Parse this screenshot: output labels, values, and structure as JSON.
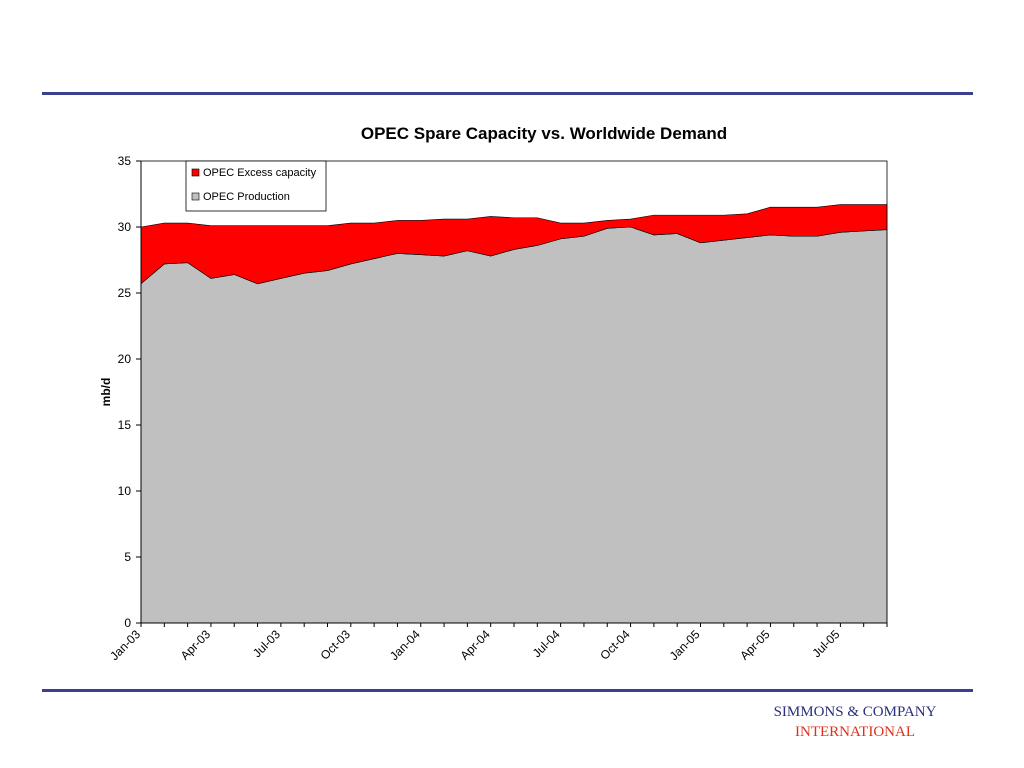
{
  "footer": {
    "company_line1": "SIMMONS & COMPANY",
    "company_line2": "INTERNATIONAL"
  },
  "colors": {
    "rule": "#3a3f8f",
    "excess": "#ff0000",
    "production": "#c0c0c0",
    "company_line1": "#2a2f7f",
    "company_line2": "#e0301e"
  },
  "chart_data": {
    "type": "area",
    "stacked": true,
    "title": "OPEC Spare Capacity vs. Worldwide Demand",
    "xlabel": "",
    "ylabel": "mb/d",
    "ylim": [
      0,
      35
    ],
    "yticks": [
      0,
      5,
      10,
      15,
      20,
      25,
      30,
      35
    ],
    "grid": false,
    "legend_position": "top-left",
    "x": [
      "Jan-03",
      "Feb-03",
      "Mar-03",
      "Apr-03",
      "May-03",
      "Jun-03",
      "Jul-03",
      "Aug-03",
      "Sep-03",
      "Oct-03",
      "Nov-03",
      "Dec-03",
      "Jan-04",
      "Feb-04",
      "Mar-04",
      "Apr-04",
      "May-04",
      "Jun-04",
      "Jul-04",
      "Aug-04",
      "Sep-04",
      "Oct-04",
      "Nov-04",
      "Dec-04",
      "Jan-05",
      "Feb-05",
      "Mar-05",
      "Apr-05",
      "May-05",
      "Jun-05",
      "Jul-05",
      "Aug-05",
      "Sep-05"
    ],
    "xtick_labels": [
      "Jan-03",
      "Apr-03",
      "Jul-03",
      "Oct-03",
      "Jan-04",
      "Apr-04",
      "Jul-04",
      "Oct-04",
      "Jan-05",
      "Apr-05",
      "Jul-05"
    ],
    "series": [
      {
        "name": "OPEC Production",
        "color": "#c0c0c0",
        "values": [
          25.7,
          27.2,
          27.3,
          26.1,
          26.4,
          25.7,
          26.1,
          26.5,
          26.7,
          27.2,
          27.6,
          28.0,
          27.9,
          27.8,
          28.2,
          27.8,
          28.3,
          28.6,
          29.1,
          29.3,
          29.9,
          30.0,
          29.4,
          29.5,
          28.8,
          29.0,
          29.2,
          29.4,
          29.3,
          29.3,
          29.6,
          29.7,
          29.8
        ]
      },
      {
        "name": "OPEC Excess capacity",
        "color": "#ff0000",
        "values": [
          4.3,
          3.1,
          3.0,
          4.0,
          3.7,
          4.4,
          4.0,
          3.6,
          3.4,
          3.1,
          2.7,
          2.5,
          2.6,
          2.8,
          2.4,
          3.0,
          2.4,
          2.1,
          1.2,
          1.0,
          0.6,
          0.6,
          1.5,
          1.4,
          2.1,
          1.9,
          1.8,
          2.1,
          2.2,
          2.2,
          2.1,
          2.0,
          1.9
        ]
      }
    ]
  }
}
